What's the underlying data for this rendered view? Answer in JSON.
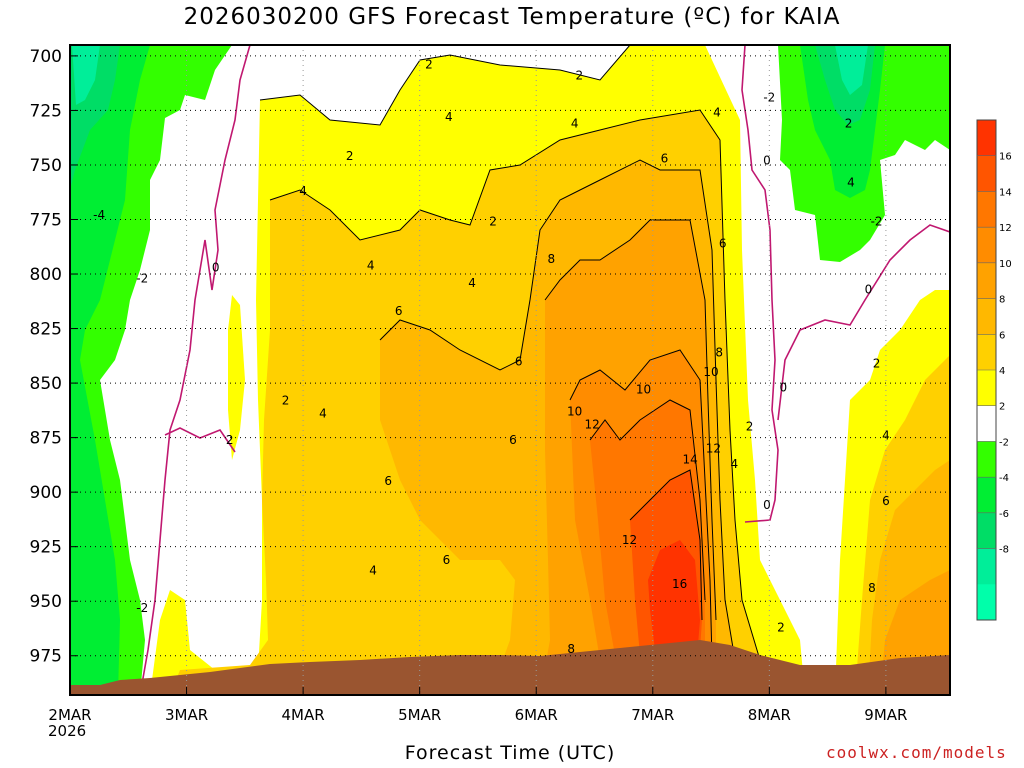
{
  "chart_data": {
    "type": "heatmap",
    "title": "2026030200 GFS Forecast Temperature (ºC) for KAIA",
    "xlabel": "Forecast Time (UTC)",
    "ylabel": "",
    "x_ticks": [
      "2MAR",
      "3MAR",
      "4MAR",
      "5MAR",
      "6MAR",
      "7MAR",
      "8MAR",
      "9MAR"
    ],
    "x_year": "2026",
    "y_ticks": [
      700,
      725,
      750,
      775,
      800,
      825,
      850,
      875,
      900,
      925,
      950,
      975
    ],
    "ylim": [
      993,
      695
    ],
    "xlim_days": [
      0,
      7.55
    ],
    "grid": true,
    "legend_placement": "right",
    "colorbar_labels": [
      "16",
      "14",
      "12",
      "10",
      "8",
      "6",
      "4",
      "2",
      "-2",
      "-4",
      "-6",
      "-8"
    ],
    "colorbar_colors": [
      "#ff3300",
      "#ff5500",
      "#ff7700",
      "#ff8c00",
      "#ffa200",
      "#ffb800",
      "#ffd000",
      "#ffff00",
      "#ffffff",
      "#33ff00",
      "#00ee33",
      "#00dd66",
      "#00ee99",
      "#00ffaa"
    ],
    "contour_labels": [
      {
        "text": "2",
        "day": 3.08,
        "p": 704
      },
      {
        "text": "2",
        "day": 4.37,
        "p": 709
      },
      {
        "text": "-2",
        "day": 6.0,
        "p": 719
      },
      {
        "text": "4",
        "day": 3.25,
        "p": 728
      },
      {
        "text": "4",
        "day": 4.33,
        "p": 731
      },
      {
        "text": "4",
        "day": 5.55,
        "p": 726
      },
      {
        "text": "2",
        "day": 6.68,
        "p": 731
      },
      {
        "text": "2",
        "day": 2.4,
        "p": 746
      },
      {
        "text": "6",
        "day": 5.1,
        "p": 747
      },
      {
        "text": "0",
        "day": 5.98,
        "p": 748
      },
      {
        "text": "4",
        "day": 6.7,
        "p": 758
      },
      {
        "text": "4",
        "day": 2.0,
        "p": 762
      },
      {
        "text": "-4",
        "day": 0.25,
        "p": 773
      },
      {
        "text": "2",
        "day": 3.63,
        "p": 776
      },
      {
        "text": "-2",
        "day": 6.92,
        "p": 776
      },
      {
        "text": "6",
        "day": 5.6,
        "p": 786
      },
      {
        "text": "8",
        "day": 4.13,
        "p": 793
      },
      {
        "text": "4",
        "day": 2.58,
        "p": 796
      },
      {
        "text": "0",
        "day": 1.25,
        "p": 797
      },
      {
        "text": "-2",
        "day": 0.62,
        "p": 802
      },
      {
        "text": "4",
        "day": 3.45,
        "p": 804
      },
      {
        "text": "0",
        "day": 6.85,
        "p": 807
      },
      {
        "text": "6",
        "day": 2.82,
        "p": 817
      },
      {
        "text": "8",
        "day": 5.57,
        "p": 836
      },
      {
        "text": "6",
        "day": 3.85,
        "p": 840
      },
      {
        "text": "2",
        "day": 6.92,
        "p": 841
      },
      {
        "text": "10",
        "day": 5.5,
        "p": 845
      },
      {
        "text": "10",
        "day": 4.92,
        "p": 853
      },
      {
        "text": "0",
        "day": 6.12,
        "p": 852
      },
      {
        "text": "2",
        "day": 1.85,
        "p": 858
      },
      {
        "text": "4",
        "day": 2.17,
        "p": 864
      },
      {
        "text": "10",
        "day": 4.33,
        "p": 863
      },
      {
        "text": "12",
        "day": 4.48,
        "p": 869
      },
      {
        "text": "2",
        "day": 5.83,
        "p": 870
      },
      {
        "text": "4",
        "day": 7.0,
        "p": 874
      },
      {
        "text": "2",
        "day": 1.37,
        "p": 876
      },
      {
        "text": "6",
        "day": 3.8,
        "p": 876
      },
      {
        "text": "12",
        "day": 5.52,
        "p": 880
      },
      {
        "text": "14",
        "day": 5.32,
        "p": 885
      },
      {
        "text": "4",
        "day": 5.7,
        "p": 887
      },
      {
        "text": "6",
        "day": 2.73,
        "p": 895
      },
      {
        "text": "6",
        "day": 7.0,
        "p": 904
      },
      {
        "text": "0",
        "day": 5.98,
        "p": 906
      },
      {
        "text": "12",
        "day": 4.8,
        "p": 922
      },
      {
        "text": "6",
        "day": 3.23,
        "p": 931
      },
      {
        "text": "4",
        "day": 2.6,
        "p": 936
      },
      {
        "text": "16",
        "day": 5.23,
        "p": 942
      },
      {
        "text": "8",
        "day": 6.88,
        "p": 944
      },
      {
        "text": "-2",
        "day": 0.62,
        "p": 953
      },
      {
        "text": "2",
        "day": 6.1,
        "p": 962
      },
      {
        "text": "8",
        "day": 4.3,
        "p": 972
      }
    ]
  }
}
